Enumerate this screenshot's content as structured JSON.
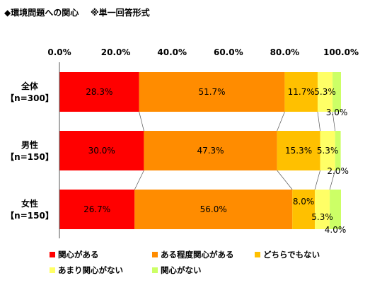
{
  "header": {
    "title": "◆環境問題への関心",
    "note": "※単一回答形式"
  },
  "chart_data": {
    "type": "bar",
    "orientation": "horizontal",
    "stacked": "percent",
    "xlim": [
      0,
      100
    ],
    "x_ticks": [
      "0.0%",
      "20.0%",
      "40.0%",
      "60.0%",
      "80.0%",
      "100.0%"
    ],
    "categories": [
      {
        "name": "全体",
        "n": "【n=300】"
      },
      {
        "name": "男性",
        "n": "【n=150】"
      },
      {
        "name": "女性",
        "n": "【n=150】"
      }
    ],
    "series": [
      {
        "name": "関心がある",
        "color": "#ff0000",
        "values": [
          28.3,
          30.0,
          26.7
        ]
      },
      {
        "name": "ある程度関心がある",
        "color": "#ff8c00",
        "values": [
          51.7,
          47.3,
          56.0
        ]
      },
      {
        "name": "どちらでもない",
        "color": "#ffc000",
        "values": [
          11.7,
          15.3,
          8.0
        ]
      },
      {
        "name": "あまり関心がない",
        "color": "#ffff66",
        "values": [
          5.3,
          5.3,
          5.3
        ]
      },
      {
        "name": "関心がない",
        "color": "#ccff66",
        "values": [
          3.0,
          2.0,
          4.0
        ]
      }
    ],
    "legend_position": "bottom",
    "grid": false,
    "series_connector_lines": true
  }
}
